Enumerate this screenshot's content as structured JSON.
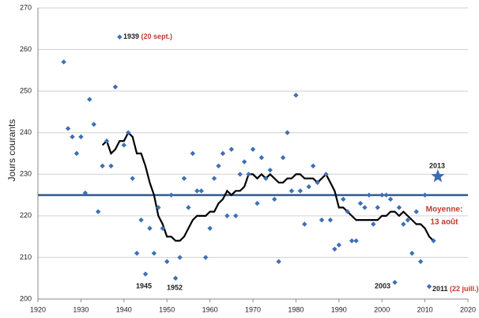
{
  "chart_data": {
    "type": "scatter",
    "y_label": "Jours courants",
    "xlim": [
      1920,
      2020
    ],
    "xticks": [
      1920,
      1930,
      1940,
      1950,
      1960,
      1970,
      1980,
      1990,
      2000,
      2010,
      2020
    ],
    "ylim": [
      200,
      270
    ],
    "yticks": [
      200,
      210,
      220,
      230,
      240,
      250,
      260,
      270
    ],
    "grid": true,
    "points": {
      "color": "#3f6fb5",
      "x": [
        1926,
        1927,
        1928,
        1929,
        1930,
        1931,
        1932,
        1933,
        1934,
        1935,
        1936,
        1937,
        1938,
        1939,
        1940,
        1941,
        1942,
        1943,
        1944,
        1945,
        1946,
        1947,
        1948,
        1949,
        1950,
        1951,
        1952,
        1953,
        1954,
        1955,
        1956,
        1957,
        1958,
        1959,
        1960,
        1961,
        1962,
        1963,
        1964,
        1965,
        1966,
        1967,
        1968,
        1969,
        1970,
        1971,
        1972,
        1973,
        1974,
        1975,
        1976,
        1977,
        1978,
        1979,
        1980,
        1981,
        1982,
        1983,
        1984,
        1985,
        1986,
        1987,
        1988,
        1989,
        1990,
        1991,
        1992,
        1993,
        1994,
        1995,
        1996,
        1997,
        1998,
        1999,
        2000,
        2001,
        2002,
        2003,
        2004,
        2005,
        2006,
        2007,
        2008,
        2009,
        2010,
        2011,
        2012
      ],
      "values": [
        257,
        241,
        239,
        235,
        239,
        225.5,
        248,
        242,
        221,
        232,
        238,
        232,
        251,
        263,
        237,
        240,
        229,
        211,
        219,
        206,
        217,
        211,
        222,
        217,
        209,
        225,
        205,
        210,
        229,
        222,
        235,
        226,
        226,
        210,
        217,
        229,
        232,
        235,
        220,
        236,
        220,
        230,
        233,
        230,
        236,
        223,
        234,
        229,
        231,
        224,
        209,
        234,
        240,
        226,
        249,
        226,
        218,
        227,
        232,
        228,
        219,
        230,
        219,
        212,
        213,
        224,
        221,
        214,
        214,
        223,
        222,
        225,
        218,
        222,
        225,
        225,
        224,
        204,
        222,
        218,
        219,
        211,
        221,
        209,
        225,
        203,
        214
      ]
    },
    "trend": {
      "color": "#000000",
      "x": [
        1935,
        1936,
        1937,
        1938,
        1939,
        1940,
        1941,
        1942,
        1943,
        1944,
        1945,
        1946,
        1947,
        1948,
        1949,
        1950,
        1951,
        1952,
        1953,
        1954,
        1955,
        1956,
        1957,
        1958,
        1959,
        1960,
        1961,
        1962,
        1963,
        1964,
        1965,
        1966,
        1967,
        1968,
        1969,
        1970,
        1971,
        1972,
        1973,
        1974,
        1975,
        1976,
        1977,
        1978,
        1979,
        1980,
        1981,
        1982,
        1983,
        1984,
        1985,
        1986,
        1987,
        1988,
        1989,
        1990,
        1991,
        1992,
        1993,
        1994,
        1995,
        1996,
        1997,
        1998,
        1999,
        2000,
        2001,
        2002,
        2003,
        2004,
        2005,
        2006,
        2007,
        2008,
        2009,
        2010,
        2011,
        2012
      ],
      "values": [
        237,
        238,
        235,
        236,
        238,
        238,
        240,
        239,
        235,
        235,
        232,
        228,
        225,
        220,
        218,
        215,
        215,
        214,
        214,
        215,
        217,
        219,
        220,
        220,
        220,
        221,
        221,
        223,
        224,
        226,
        225,
        226,
        226,
        227,
        230,
        230,
        229,
        230,
        229,
        230,
        229,
        228,
        228,
        229,
        229,
        230,
        230,
        229,
        229,
        229,
        228,
        229,
        230,
        228,
        226,
        222,
        222,
        221,
        220,
        219,
        219,
        219,
        219,
        219,
        219,
        220,
        220,
        221,
        221,
        220,
        221,
        220,
        219,
        218,
        218,
        217,
        215,
        214
      ]
    },
    "mean": {
      "value": 225,
      "color": "#2e5b8f",
      "label": "Moyenne:",
      "date": "13 août"
    },
    "highlight": {
      "x": 2013,
      "y": 229.5,
      "color": "#3a6db5",
      "label": "2013"
    },
    "annotations": [
      {
        "year": "1939",
        "date": "(20 sept.)"
      },
      {
        "year": "1945"
      },
      {
        "year": "1952"
      },
      {
        "year": "2003"
      },
      {
        "year": "2011",
        "date": "(22 juill.)"
      }
    ]
  }
}
